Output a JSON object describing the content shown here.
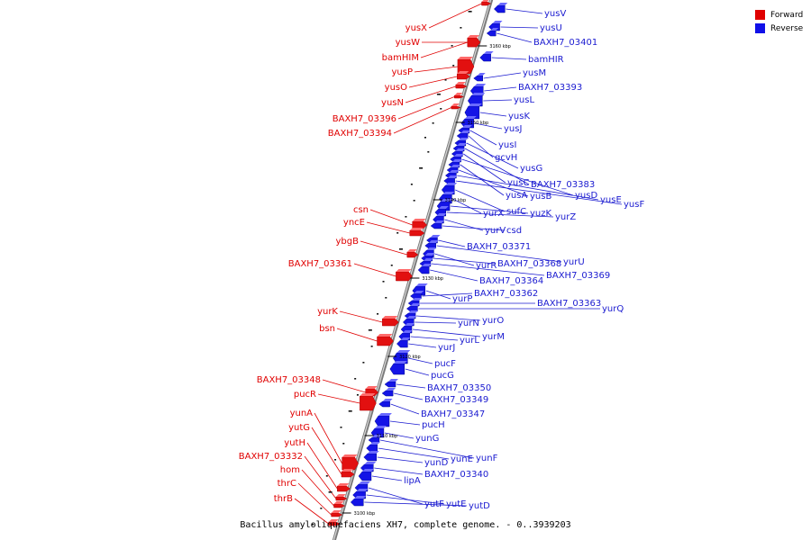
{
  "caption": "Bacillus amyloliquefaciens XH7, complete genome. - 0..3939203",
  "legend": {
    "forward_label": "Forward",
    "reverse_label": "Reverse",
    "forward_color": "#e00000",
    "reverse_color": "#1010e8"
  },
  "ticks": [
    "3100 kbp",
    "3110 kbp",
    "3120 kbp",
    "3130 kbp",
    "3140 kbp",
    "3150 kbp",
    "3160 kbp"
  ],
  "forward_genes": [
    "yusX",
    "yusW",
    "bamHIM",
    "yusP",
    "yusO",
    "yusN",
    "BAXH7_03396",
    "BAXH7_03394",
    "csn",
    "yncE",
    "ybgB",
    "BAXH7_03361",
    "yurK",
    "bsn",
    "BAXH7_03348",
    "pucR",
    "yunA",
    "yutG",
    "yutH",
    "BAXH7_03332",
    "hom",
    "thrC",
    "thrB"
  ],
  "reverse_genes": [
    "yusV",
    "yusU",
    "BAXH7_03401",
    "bamHIR",
    "yusM",
    "BAXH7_03393",
    "yusL",
    "yusK",
    "yusJ",
    "yusI",
    "gcvH",
    "yusG",
    "BAXH7_03383",
    "yusC",
    "yusD",
    "yusA",
    "yusB",
    "yusE",
    "yusF",
    "sufC",
    "yurX",
    "yuzK",
    "yurZ",
    "yurV",
    "csd",
    "BAXH7_03371",
    "yurU",
    "yurR",
    "BAXH7_03368",
    "BAXH7_03369",
    "BAXH7_03364",
    "yurP",
    "BAXH7_03362",
    "BAXH7_03363",
    "yurQ",
    "yurO",
    "yurN",
    "yurM",
    "yurL",
    "yurJ",
    "pucF",
    "pucG",
    "BAXH7_03350",
    "BAXH7_03349",
    "BAXH7_03347",
    "pucH",
    "yunG",
    "yunF",
    "yunE",
    "yunD",
    "BAXH7_03340",
    "lipA",
    "yutF",
    "yutE",
    "yutD"
  ]
}
